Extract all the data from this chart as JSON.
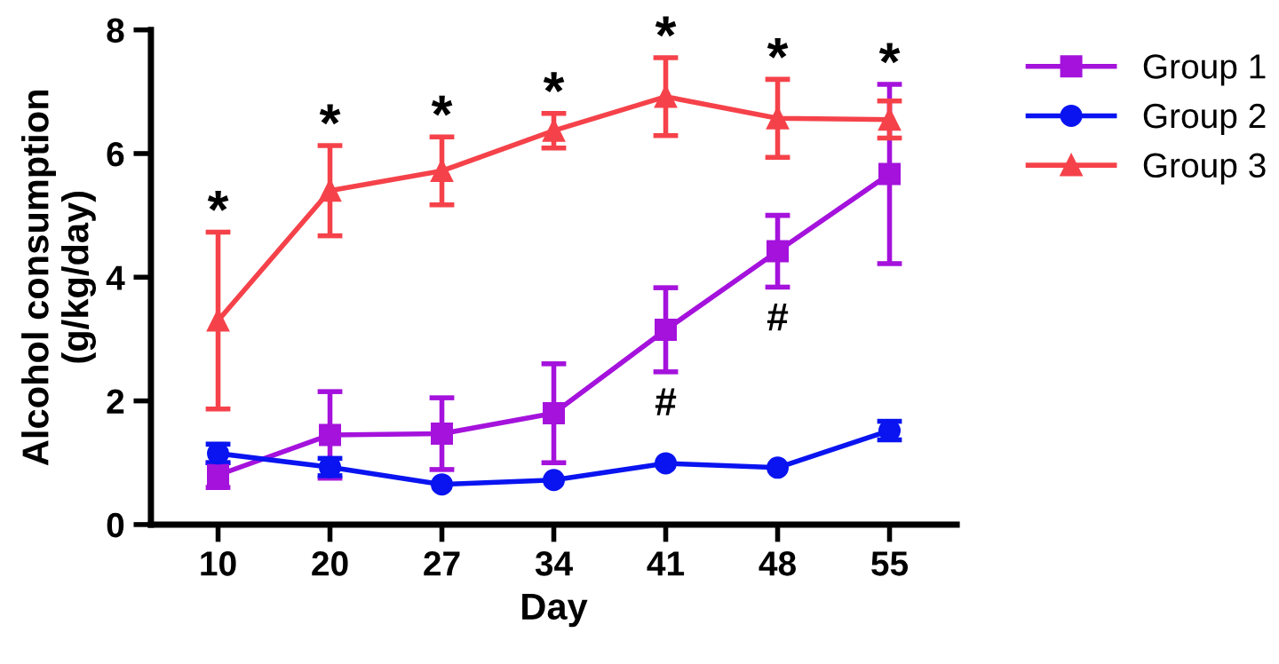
{
  "chart_data": {
    "type": "line",
    "xlabel": "Day",
    "ylabel": "Alcohol consumption\n(g/kg/day)",
    "categories": [
      "10",
      "20",
      "27",
      "34",
      "41",
      "48",
      "55"
    ],
    "series": [
      {
        "name": "Group 1",
        "color": "#a412dc",
        "marker": "square",
        "values": [
          0.8,
          1.45,
          1.47,
          1.8,
          3.15,
          4.42,
          5.67
        ],
        "errors": [
          0.2,
          0.7,
          0.58,
          0.8,
          0.68,
          0.58,
          1.45
        ]
      },
      {
        "name": "Group 2",
        "color": "#0a14f0",
        "marker": "circle",
        "values": [
          1.15,
          0.93,
          0.65,
          0.72,
          0.99,
          0.92,
          1.52
        ],
        "errors": [
          0.15,
          0.14,
          null,
          null,
          null,
          null,
          0.15
        ]
      },
      {
        "name": "Group 3",
        "color": "#f5424a",
        "marker": "triangle",
        "values": [
          3.3,
          5.4,
          5.72,
          6.37,
          6.92,
          6.57,
          6.55
        ],
        "errors": [
          1.43,
          0.73,
          0.55,
          0.28,
          0.63,
          0.63,
          0.3
        ]
      }
    ],
    "ylim": [
      0,
      8
    ],
    "yticks": [
      0,
      2,
      4,
      6,
      8
    ],
    "grid": false,
    "legend": "right",
    "annotations": [
      {
        "text": "*",
        "x": "10",
        "y": 4.73
      },
      {
        "text": "*",
        "x": "20",
        "y": 6.13
      },
      {
        "text": "*",
        "x": "27",
        "y": 6.27
      },
      {
        "text": "*",
        "x": "34",
        "y": 6.65
      },
      {
        "text": "*",
        "x": "41",
        "y": 7.55
      },
      {
        "text": "*",
        "x": "48",
        "y": 7.2
      },
      {
        "text": "*",
        "x": "55",
        "y": 7.12
      },
      {
        "text": "#",
        "x": "41",
        "y": 2.47
      },
      {
        "text": "#",
        "x": "48",
        "y": 3.84
      }
    ]
  }
}
